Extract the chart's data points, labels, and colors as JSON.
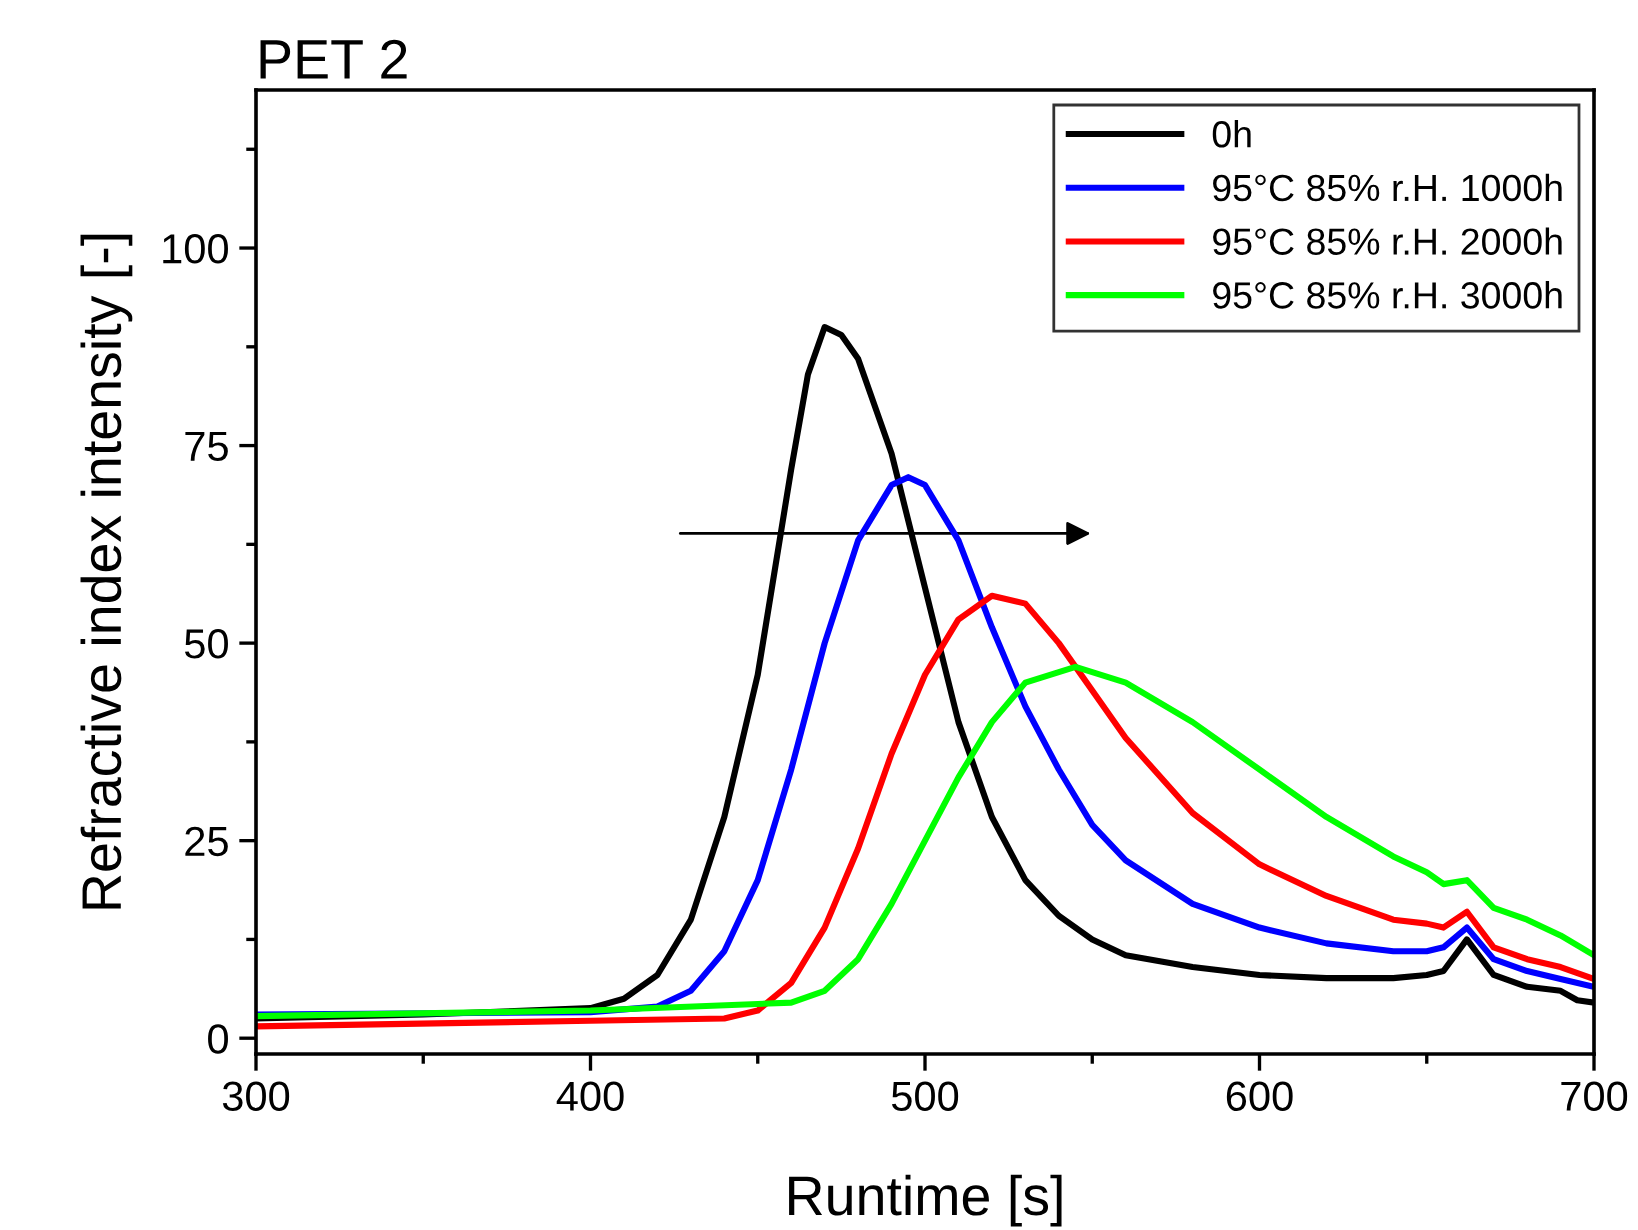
{
  "chart_data": {
    "type": "line",
    "title": "PET 2",
    "xlabel": "Runtime [s]",
    "ylabel": "Refractive index intensity [-]",
    "xlim": [
      300,
      700
    ],
    "xticks": [
      300,
      400,
      500,
      600,
      700
    ],
    "ylim": [
      -2,
      120
    ],
    "yticks": [
      0,
      25,
      50,
      75,
      100
    ],
    "grid": false,
    "legend": "top right",
    "marker": "none",
    "line_style": "solid",
    "series": [
      {
        "name": "0h",
        "color": "#000000",
        "x": [
          300,
          350,
          400,
          410,
          420,
          430,
          440,
          450,
          460,
          465,
          470,
          475,
          480,
          490,
          500,
          510,
          520,
          530,
          540,
          550,
          560,
          580,
          600,
          620,
          640,
          650,
          655,
          662,
          670,
          680,
          690,
          695,
          700
        ],
        "values": [
          2.5,
          3,
          3.8,
          5,
          8,
          15,
          28,
          46,
          72,
          84,
          90,
          89,
          86,
          74,
          57,
          40,
          28,
          20,
          15.5,
          12.5,
          10.5,
          9,
          8,
          7.6,
          7.6,
          8,
          8.5,
          12.5,
          8,
          6.5,
          6,
          4.8,
          4.5
        ]
      },
      {
        "name": "95°C 85% r.H. 1000h",
        "color": "#0000ff",
        "x": [
          300,
          400,
          420,
          430,
          440,
          450,
          460,
          470,
          480,
          490,
          495,
          500,
          510,
          520,
          530,
          540,
          550,
          560,
          580,
          600,
          620,
          640,
          650,
          655,
          662,
          670,
          680,
          690,
          700
        ],
        "values": [
          3,
          3.3,
          4,
          6,
          11,
          20,
          34,
          50,
          63,
          70,
          71,
          70,
          63,
          52,
          42,
          34,
          27,
          22.5,
          17,
          14,
          12,
          11,
          11,
          11.5,
          14,
          10,
          8.5,
          7.5,
          6.5
        ]
      },
      {
        "name": "95°C 85% r.H. 2000h",
        "color": "#ff0000",
        "x": [
          300,
          400,
          440,
          450,
          460,
          470,
          480,
          490,
          500,
          510,
          520,
          530,
          540,
          550,
          560,
          580,
          600,
          620,
          640,
          650,
          655,
          662,
          670,
          680,
          690,
          700
        ],
        "values": [
          1.5,
          2.2,
          2.5,
          3.5,
          7,
          14,
          24,
          36,
          46,
          53,
          56,
          55,
          50,
          44,
          38,
          28.5,
          22,
          18,
          15,
          14.5,
          14,
          16,
          11.5,
          10,
          9,
          7.5
        ]
      },
      {
        "name": "95°C 85% r.H. 3000h",
        "color": "#00ff00",
        "x": [
          300,
          400,
          460,
          470,
          480,
          490,
          500,
          510,
          520,
          530,
          545,
          560,
          580,
          600,
          620,
          640,
          650,
          655,
          662,
          670,
          680,
          690,
          700
        ],
        "values": [
          2.8,
          3.5,
          4.5,
          6,
          10,
          17,
          25,
          33,
          40,
          45,
          47,
          45,
          40,
          34,
          28,
          23,
          21,
          19.5,
          20,
          16.5,
          15,
          13,
          10.5
        ]
      }
    ]
  }
}
